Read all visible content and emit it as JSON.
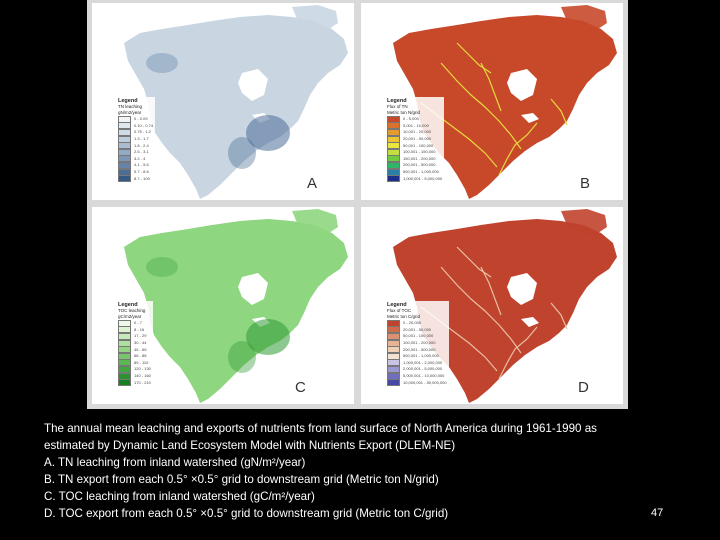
{
  "panels": [
    {
      "id": "a",
      "letter": "A",
      "legend_title": "Legend",
      "legend_subtitle": "TN leaching",
      "legend_unit": "gN/m2/year",
      "classes": [
        {
          "label": "0 - 0.09",
          "color": "#f1f4f7"
        },
        {
          "label": "0.10 - 0.74",
          "color": "#e0e8ef"
        },
        {
          "label": "0.75 - 1.2",
          "color": "#cfdbe6"
        },
        {
          "label": "1.3 - 1.7",
          "color": "#bccddd"
        },
        {
          "label": "1.8 - 2.4",
          "color": "#a8bdd1"
        },
        {
          "label": "2.5 - 3.1",
          "color": "#93aac4"
        },
        {
          "label": "3.2 - 4",
          "color": "#7c97b6"
        },
        {
          "label": "4.1 - 5.6",
          "color": "#6483a7"
        },
        {
          "label": "5.7 - 8.6",
          "color": "#4c6e96"
        },
        {
          "label": "8.7 - 100",
          "color": "#355a86"
        }
      ],
      "map_fill": "#c9d6e2",
      "map_accent": "#4a6e97"
    },
    {
      "id": "b",
      "letter": "B",
      "legend_title": "Legend",
      "legend_subtitle": "Flux of TN",
      "legend_unit": "Metric ton N/grid",
      "classes": [
        {
          "label": "0 - 5,000",
          "color": "#c8492a"
        },
        {
          "label": "5,001 - 10,000",
          "color": "#d8712c"
        },
        {
          "label": "10,001 - 20,000",
          "color": "#e39a2e"
        },
        {
          "label": "20,001 - 50,000",
          "color": "#eec437"
        },
        {
          "label": "50,001 - 100,000",
          "color": "#e9e640"
        },
        {
          "label": "100,001 - 150,000",
          "color": "#bfe040"
        },
        {
          "label": "150,001 - 200,000",
          "color": "#6fcc3f"
        },
        {
          "label": "200,001 - 500,000",
          "color": "#2fb56a"
        },
        {
          "label": "500,001 - 1,000,000",
          "color": "#2a7fa7"
        },
        {
          "label": "1,000,001 - 5,000,000",
          "color": "#1d2f8a"
        }
      ],
      "map_fill": "#c8492a",
      "map_accent": "#e6d93d"
    },
    {
      "id": "c",
      "letter": "C",
      "legend_title": "Legend",
      "legend_subtitle": "TOC leaching",
      "legend_unit": "gC/m2/year",
      "classes": [
        {
          "label": "0 - 7",
          "color": "#eef9ea"
        },
        {
          "label": "8 - 16",
          "color": "#dcf2d3"
        },
        {
          "label": "17 - 29",
          "color": "#c6eab9"
        },
        {
          "label": "30 - 44",
          "color": "#ade09e"
        },
        {
          "label": "45 - 65",
          "color": "#92d483"
        },
        {
          "label": "66 - 88",
          "color": "#76c66a"
        },
        {
          "label": "89 - 110",
          "color": "#5ab853"
        },
        {
          "label": "120 - 130",
          "color": "#40a63e"
        },
        {
          "label": "140 - 160",
          "color": "#2a932d"
        },
        {
          "label": "170 - 210",
          "color": "#18801f"
        }
      ],
      "map_fill": "#8ed67f",
      "map_accent": "#2f9a34"
    },
    {
      "id": "d",
      "letter": "D",
      "legend_title": "Legend",
      "legend_subtitle": "Flux of TOC",
      "legend_unit": "Metric ton C/grid",
      "classes": [
        {
          "label": "0 - 20,000",
          "color": "#c0432e"
        },
        {
          "label": "20,001 - 50,000",
          "color": "#cf6a4a"
        },
        {
          "label": "50,001 - 100,000",
          "color": "#dc9170"
        },
        {
          "label": "100,001 - 200,000",
          "color": "#e6b394"
        },
        {
          "label": "200,001 - 500,000",
          "color": "#efcfb6"
        },
        {
          "label": "500,001 - 1,000,000",
          "color": "#f3e2d2"
        },
        {
          "label": "1,000,001 - 2,000,000",
          "color": "#c9c4e4"
        },
        {
          "label": "2,000,001 - 5,000,000",
          "color": "#9b99d2"
        },
        {
          "label": "5,000,001 - 10,000,000",
          "color": "#6f6fbe"
        },
        {
          "label": "10,000,001 - 50,000,000",
          "color": "#4747a6"
        }
      ],
      "map_fill": "#c0432e",
      "map_accent": "#e8bfa4"
    }
  ],
  "caption": {
    "line1": "The annual mean leaching and exports of nutrients from land surface of North America during 1961-1990 as",
    "line2": "estimated by Dynamic Land Ecosystem Model with Nutrients Export (DLEM-NE)",
    "line3": "A. TN leaching from inland watershed (gN/m²/year)",
    "line4": "B. TN export from each 0.5° ×0.5° grid to downstream grid (Metric ton N/grid)",
    "line5": "C. TOC leaching from inland watershed (gC/m²/year)",
    "line6": "D. TOC export from each 0.5° ×0.5° grid to downstream grid (Metric ton C/grid)"
  },
  "page_number": "47"
}
